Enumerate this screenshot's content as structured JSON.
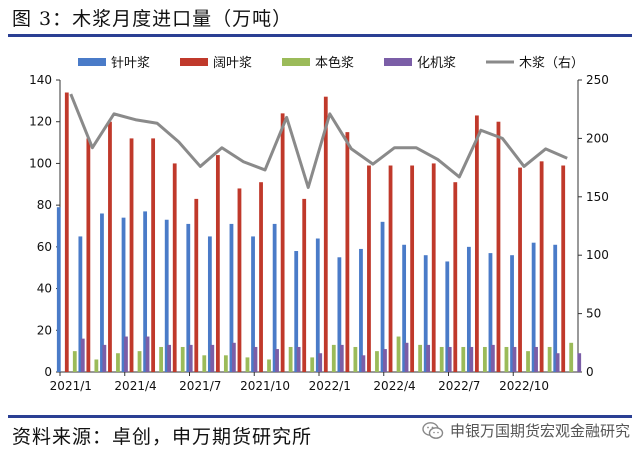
{
  "header": {
    "title": "图 3：木浆月度进口量（万吨）"
  },
  "footer": {
    "source": "资料来源：卓创，申万期货研究所",
    "watermark": "申银万国期货宏观金融研究"
  },
  "icons": {
    "watermark_icon": "wechat-icon"
  },
  "colors": {
    "softwood": "#4a7bc8",
    "hardwood": "#c0392b",
    "unbleached": "#9bbb59",
    "fluff": "#7b5ea7",
    "total": "#8a8a8a",
    "rule": "#2a3f93"
  },
  "chart_data": {
    "type": "bar",
    "categories": [
      "2021/1",
      "2021/2",
      "2021/3",
      "2021/4",
      "2021/5",
      "2021/6",
      "2021/7",
      "2021/8",
      "2021/9",
      "2021/10",
      "2021/11",
      "2021/12",
      "2022/1",
      "2022/2",
      "2022/3",
      "2022/4",
      "2022/5",
      "2022/6",
      "2022/7",
      "2022/8",
      "2022/9",
      "2022/10",
      "2022/11",
      "2022/12"
    ],
    "tick_labels": [
      "2021/1",
      "2021/4",
      "2021/7",
      "2021/10",
      "2022/1",
      "2022/4",
      "2022/7",
      "2022/10"
    ],
    "tick_every": 3,
    "series": [
      {
        "name": "针叶浆",
        "key": "softwood",
        "type": "bar",
        "axis": "left",
        "values": [
          79,
          65,
          76,
          74,
          77,
          73,
          71,
          65,
          71,
          65,
          71,
          58,
          64,
          55,
          59,
          72,
          61,
          56,
          53,
          60,
          57,
          56,
          62,
          61
        ]
      },
      {
        "name": "阔叶浆",
        "key": "hardwood",
        "type": "bar",
        "axis": "left",
        "values": [
          134,
          112,
          120,
          112,
          112,
          100,
          83,
          104,
          88,
          91,
          124,
          83,
          132,
          115,
          99,
          99,
          99,
          100,
          91,
          123,
          120,
          98,
          101,
          99
        ]
      },
      {
        "name": "本色浆",
        "key": "unbleached",
        "type": "bar",
        "axis": "left",
        "values": [
          10,
          6,
          9,
          10,
          12,
          12,
          8,
          8,
          7,
          6,
          12,
          7,
          13,
          12,
          10,
          17,
          13,
          12,
          12,
          12,
          12,
          10,
          12,
          14
        ]
      },
      {
        "name": "化机浆",
        "key": "fluff",
        "type": "bar",
        "axis": "left",
        "values": [
          16,
          13,
          17,
          17,
          13,
          13,
          13,
          14,
          12,
          11,
          12,
          9,
          13,
          8,
          11,
          14,
          13,
          12,
          12,
          13,
          12,
          12,
          9,
          9
        ]
      },
      {
        "name": "木浆（右）",
        "key": "total",
        "type": "line",
        "axis": "right",
        "values": [
          238,
          192,
          221,
          216,
          213,
          197,
          176,
          192,
          180,
          173,
          218,
          158,
          221,
          191,
          178,
          192,
          192,
          182,
          167,
          207,
          200,
          176,
          191,
          183
        ]
      }
    ],
    "ylim_left": [
      0,
      140
    ],
    "yticks_left": [
      0,
      20,
      40,
      60,
      80,
      100,
      120,
      140
    ],
    "ylim_right": [
      0,
      250
    ],
    "yticks_right": [
      0,
      50,
      100,
      150,
      200,
      250
    ],
    "legend": "top",
    "grid": false
  }
}
